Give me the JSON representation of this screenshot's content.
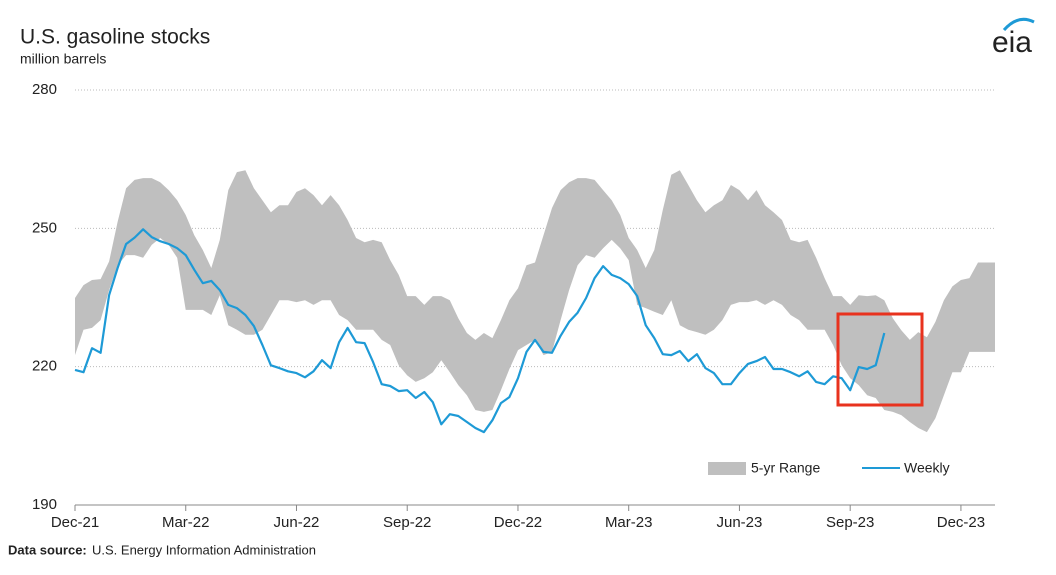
{
  "chart_data": {
    "type": "line",
    "title": "U.S. gasoline stocks",
    "subtitle": "million barrels",
    "logo": "eia",
    "source_label": "Data source:",
    "source": "U.S. Energy Information Administration",
    "categories": [
      "Dec-21",
      null,
      null,
      null,
      null,
      null,
      null,
      null,
      null,
      null,
      null,
      null,
      null,
      "Mar-22",
      null,
      null,
      null,
      null,
      null,
      null,
      null,
      null,
      null,
      null,
      null,
      null,
      "Jun-22",
      null,
      null,
      null,
      null,
      null,
      null,
      null,
      null,
      null,
      null,
      null,
      null,
      "Sep-22",
      null,
      null,
      null,
      null,
      null,
      null,
      null,
      null,
      null,
      null,
      null,
      null,
      "Dec-22",
      null,
      null,
      null,
      null,
      null,
      null,
      null,
      null,
      null,
      null,
      null,
      null,
      "Mar-23",
      null,
      null,
      null,
      null,
      null,
      null,
      null,
      null,
      null,
      null,
      null,
      null,
      "Jun-23",
      null,
      null,
      null,
      null,
      null,
      null,
      null,
      null,
      null,
      null,
      null,
      null,
      "Sep-23",
      null,
      null,
      null,
      null,
      null,
      null,
      null,
      null,
      null,
      null,
      null,
      null,
      "Dec-23",
      null,
      null,
      null,
      null
    ],
    "series": [
      {
        "name": "5-yr Range",
        "color": "#bfbfbf",
        "type": "range",
        "upper": [
          234.9,
          237.7,
          238.8,
          239,
          242.8,
          251.4,
          258.7,
          260.5,
          260.9,
          260.9,
          260,
          258.3,
          256.1,
          252.9,
          248.5,
          245.3,
          241.4,
          247.5,
          258.3,
          262.2,
          262.6,
          258.7,
          256.1,
          253.5,
          255,
          255,
          257.9,
          258.7,
          257.2,
          255,
          257.2,
          255,
          251.8,
          247.9,
          247,
          247.5,
          247,
          243.1,
          239.9,
          235.3,
          235.3,
          233.4,
          235.3,
          235.3,
          234.4,
          230.5,
          227.3,
          225.8,
          227.3,
          226.2,
          230.1,
          234.4,
          237,
          242,
          242.6,
          248.5,
          254.4,
          258.3,
          260,
          260.9,
          260.9,
          260.5,
          258.3,
          256.1,
          252.9,
          247.9,
          245.3,
          241.4,
          245.3,
          254,
          261.6,
          262.6,
          259.4,
          256.1,
          253.5,
          255,
          256.1,
          259.4,
          258.3,
          256.1,
          258.3,
          255,
          253.5,
          251.8,
          247.5,
          247,
          247.5,
          243.6,
          239.2,
          235.3,
          235.3,
          233.4,
          235.5,
          235.3,
          235.5,
          234.4,
          230.5,
          227.9,
          225.8,
          227.5,
          226.4,
          229.7,
          234.4,
          237.4,
          238.8,
          239.2,
          242.6,
          242.6,
          242.6
        ],
        "lower": [
          222.5,
          228,
          228.4,
          230.1,
          236.6,
          242,
          244.2,
          244.2,
          243.6,
          246.4,
          247.9,
          246.4,
          243.6,
          232.3,
          232.3,
          232.3,
          231.2,
          235.5,
          229,
          228,
          226.9,
          226.9,
          228,
          231.2,
          234.4,
          234.4,
          234,
          234.4,
          233.4,
          234.4,
          234.4,
          231.2,
          230.1,
          228,
          228,
          228,
          225.8,
          224.7,
          220.3,
          218.1,
          216.7,
          217.5,
          218.8,
          221.4,
          218.8,
          216,
          213.8,
          210.6,
          210.2,
          210.6,
          214.9,
          219.5,
          223.6,
          224.7,
          225.8,
          222.5,
          223.2,
          230.1,
          236.6,
          242,
          244.2,
          243.6,
          245.7,
          247.5,
          245.7,
          243.1,
          233.4,
          232.7,
          231.9,
          231.2,
          234.4,
          229,
          228,
          227.5,
          226.9,
          228,
          230.1,
          233.4,
          234,
          234,
          234.4,
          233.4,
          234.4,
          233.4,
          231.2,
          230.1,
          228,
          228,
          228,
          224.7,
          220.3,
          217.5,
          216,
          213.8,
          213.2,
          210.6,
          210.2,
          209.5,
          208,
          206.7,
          205.8,
          208.8,
          213.8,
          218.8,
          218.8,
          223.2,
          223.2,
          223.2,
          223.2
        ]
      },
      {
        "name": "Weekly",
        "color": "#1e9ad6",
        "values": [
          219.3,
          218.8,
          224,
          223,
          235.5,
          241.4,
          246.6,
          248,
          249.8,
          248.1,
          247.2,
          246.6,
          245.7,
          244.2,
          241,
          238.1,
          238.6,
          236.6,
          233.4,
          232.7,
          231.2,
          228.8,
          224.7,
          220.3,
          219.7,
          219,
          218.6,
          217.7,
          219,
          221.4,
          219.7,
          225.3,
          228.4,
          225.3,
          225.1,
          221,
          216.2,
          215.8,
          214.7,
          214.9,
          213.2,
          214.5,
          212.3,
          207.5,
          209.7,
          209.3,
          208,
          206.7,
          205.8,
          208.4,
          212.1,
          213.4,
          217.5,
          223.2,
          225.8,
          223.2,
          223,
          226.7,
          229.7,
          231.7,
          234.9,
          239.2,
          241.8,
          239.9,
          239.2,
          237.9,
          235.3,
          229,
          226.2,
          222.7,
          222.5,
          223.4,
          221.2,
          222.7,
          219.7,
          218.6,
          216.2,
          216.2,
          218.6,
          220.6,
          221.2,
          222.1,
          219.5,
          219.5,
          218.8,
          217.9,
          219,
          216.7,
          216.2,
          217.9,
          217.5,
          214.9,
          219.9,
          219.5,
          220.3,
          227.3,
          null,
          null,
          null,
          null,
          null,
          null,
          null,
          null,
          null,
          null,
          null,
          null,
          null
        ]
      }
    ],
    "ylim": [
      190,
      280
    ],
    "yticks": [
      190,
      220,
      250,
      280
    ],
    "grid": true,
    "legend": "lower right"
  }
}
